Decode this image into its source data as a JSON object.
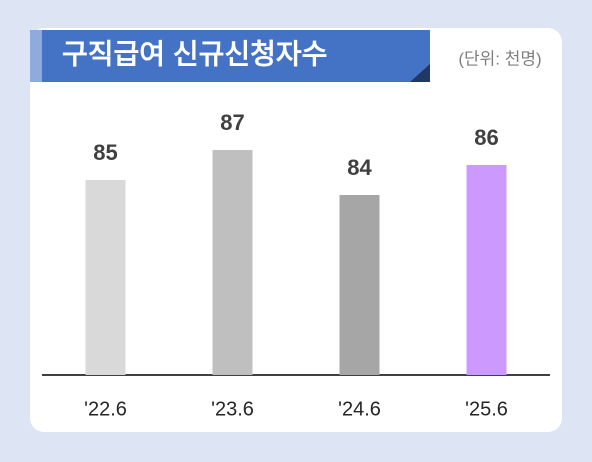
{
  "chart_data": {
    "type": "bar",
    "title": "구직급여 신규신청자수",
    "subtitle": "(단위: 천명)",
    "categories": [
      "'22.6",
      "'23.6",
      "'24.6",
      "'25.6"
    ],
    "values": [
      85,
      87,
      84,
      86
    ],
    "colors": [
      "#d9d9d9",
      "#bfbfbf",
      "#a6a6a6",
      "#cc99ff"
    ],
    "ylim": [
      72,
      90
    ]
  }
}
